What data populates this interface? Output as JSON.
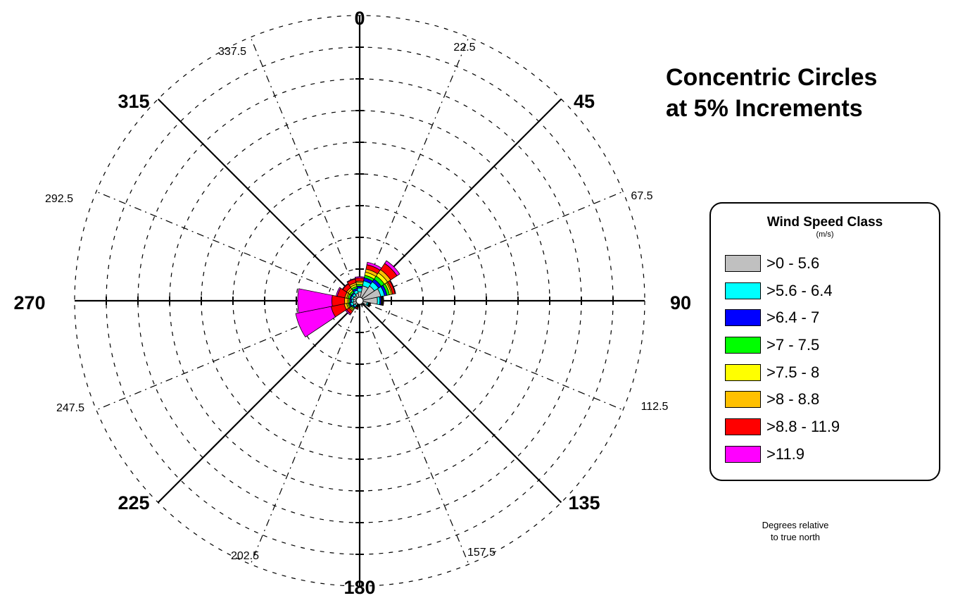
{
  "chart_data": {
    "type": "wind_rose",
    "title": "Concentric Circles\nat 5% Increments",
    "ring_increment_percent": 5,
    "ring_count": 9,
    "direction_labels_major": [
      "0",
      "45",
      "90",
      "135",
      "180",
      "225",
      "270",
      "315"
    ],
    "direction_labels_minor": [
      "22.5",
      "67.5",
      "112.5",
      "157.5",
      "202.5",
      "247.5",
      "292.5",
      "337.5"
    ],
    "sector_width_deg": 22.5,
    "legend": {
      "title": "Wind Speed Class",
      "units": "(m/s)",
      "classes": [
        {
          "label": ">0 - 5.6",
          "color": "#c0c0c0"
        },
        {
          "label": ">5.6 - 6.4",
          "color": "#00ffff"
        },
        {
          "label": ">6.4 - 7",
          "color": "#0000ff"
        },
        {
          "label": ">7 - 7.5",
          "color": "#00ff00"
        },
        {
          "label": ">7.5 - 8",
          "color": "#ffff00"
        },
        {
          "label": ">8 - 8.8",
          "color": "#ffc000"
        },
        {
          "label": ">8.8 - 11.9",
          "color": "#ff0000"
        },
        {
          "label": ">11.9",
          "color": "#ff00ff"
        }
      ]
    },
    "series": [
      {
        "direction": 0,
        "values": [
          1.4,
          0.6,
          0.3,
          0.3,
          0.3,
          0.2,
          0.5,
          0.2
        ]
      },
      {
        "direction": 22.5,
        "values": [
          2.4,
          0.8,
          0.5,
          0.4,
          0.5,
          0.5,
          0.7,
          0.4
        ]
      },
      {
        "direction": 45,
        "values": [
          2.8,
          0.8,
          0.5,
          0.6,
          0.6,
          0.6,
          1.2,
          0.5
        ]
      },
      {
        "direction": 67.5,
        "values": [
          3.4,
          0.6,
          0.4,
          0.4,
          0.3,
          0.2,
          0.4,
          0.1
        ]
      },
      {
        "direction": 90,
        "values": [
          2.8,
          0.4,
          0.2,
          0.1,
          0.1,
          0.1,
          0.1,
          0.0
        ]
      },
      {
        "direction": 112.5,
        "values": [
          1.2,
          0.2,
          0.1,
          0.1,
          0.1,
          0.0,
          0.1,
          0.0
        ]
      },
      {
        "direction": 135,
        "values": [
          0.7,
          0.1,
          0.0,
          0.0,
          0.0,
          0.0,
          0.1,
          0.0
        ]
      },
      {
        "direction": 157.5,
        "values": [
          0.5,
          0.1,
          0.0,
          0.0,
          0.0,
          0.0,
          0.0,
          0.0
        ]
      },
      {
        "direction": 180,
        "values": [
          0.5,
          0.1,
          0.0,
          0.0,
          0.0,
          0.0,
          0.0,
          0.0
        ]
      },
      {
        "direction": 202.5,
        "values": [
          0.6,
          0.1,
          0.1,
          0.1,
          0.1,
          0.1,
          0.2,
          0.1
        ]
      },
      {
        "direction": 225,
        "values": [
          0.9,
          0.3,
          0.2,
          0.2,
          0.2,
          0.2,
          0.5,
          0.2
        ]
      },
      {
        "direction": 247.5,
        "values": [
          1.1,
          0.4,
          0.2,
          0.2,
          0.2,
          0.4,
          2.1,
          5.7
        ]
      },
      {
        "direction": 270,
        "values": [
          1.0,
          0.3,
          0.2,
          0.2,
          0.2,
          0.5,
          2.0,
          5.4
        ]
      },
      {
        "direction": 292.5,
        "values": [
          1.1,
          0.3,
          0.2,
          0.3,
          0.2,
          0.3,
          1.2,
          0.2
        ]
      },
      {
        "direction": 315,
        "values": [
          1.0,
          0.4,
          0.2,
          0.3,
          0.3,
          0.3,
          0.7,
          0.1
        ]
      },
      {
        "direction": 337.5,
        "values": [
          1.2,
          0.5,
          0.3,
          0.3,
          0.3,
          0.3,
          0.6,
          0.1
        ]
      }
    ]
  },
  "legend_note": "Degrees relative\nto true north"
}
